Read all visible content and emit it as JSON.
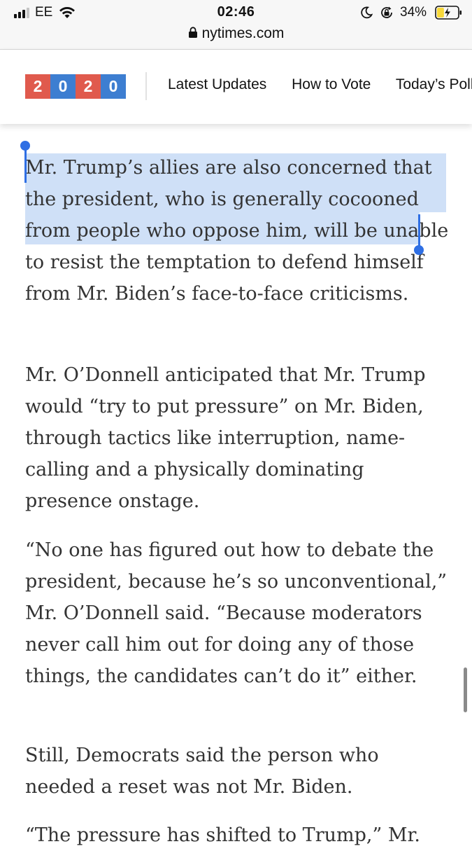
{
  "status_bar": {
    "carrier": "EE",
    "time": "02:46",
    "battery_percent": "34%",
    "signal_bars_active": 3,
    "signal_bars_total": 4,
    "battery_level": 0.34,
    "battery_color": "#f7d83a"
  },
  "browser": {
    "url": "nytimes.com"
  },
  "nav": {
    "logo_digits": [
      "2",
      "0",
      "2",
      "0"
    ],
    "logo_colors": [
      "#e05a4d",
      "#3d7ed1",
      "#e05a4d",
      "#3d7ed1"
    ],
    "links": [
      "Latest Updates",
      "How to Vote",
      "Today’s Polls"
    ]
  },
  "article": {
    "paragraphs": [
      "Mr. Trump’s allies are also concerned that the president, who is generally cocooned from people who oppose him, will be unable to resist the temptation to defend himself from Mr. Biden’s face-to-face criticisms.",
      "Mr. O’Donnell anticipated that Mr. Trump would “try to put pressure” on Mr. Biden, through tactics like interruption, name-calling and a physically dominating presence onstage.",
      "“No one has figured out how to debate the president, because he’s so unconventional,” Mr. O’Donnell said. “Because moderators never call him out for doing any of those things, the candidates can’t do it” either.",
      "Still, Democrats said the person who needed a reset was not Mr. Biden.",
      "“The pressure has shifted to Trump,” Mr."
    ]
  },
  "colors": {
    "selection": "#cfe0f7",
    "selection_handle": "#2f6fe4"
  }
}
